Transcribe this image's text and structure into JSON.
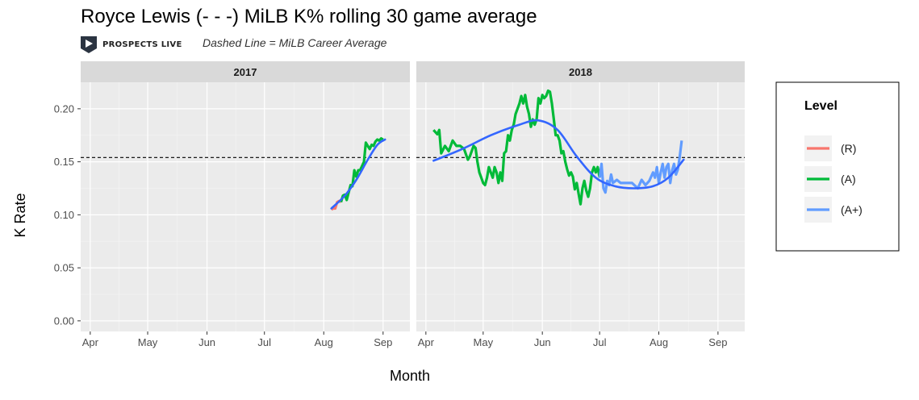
{
  "title": "Royce Lewis (- - -) MiLB K% rolling 30 game average",
  "brand": "PROSPECTS LIVE",
  "subtitle": "Dashed Line = MiLB Career Average",
  "chart_data": {
    "type": "line",
    "xlabel": "Month",
    "ylabel": "K Rate",
    "ylim": [
      -0.01,
      0.225
    ],
    "yticks": [
      0.0,
      0.05,
      0.1,
      0.15,
      0.2
    ],
    "ytick_labels": [
      "0.00",
      "0.05",
      "0.10",
      "0.15",
      "0.20"
    ],
    "xlim_day_of_year": [
      86,
      258
    ],
    "xticks": [
      {
        "label": "Apr",
        "day": 91
      },
      {
        "label": "May",
        "day": 121
      },
      {
        "label": "Jun",
        "day": 152
      },
      {
        "label": "Jul",
        "day": 182
      },
      {
        "label": "Aug",
        "day": 213
      },
      {
        "label": "Sep",
        "day": 244
      }
    ],
    "grid": true,
    "career_average": 0.154,
    "legend": {
      "title": "Level",
      "position": "right",
      "entries": [
        {
          "label": "(R)",
          "color": "#F8766D"
        },
        {
          "label": "(A)",
          "color": "#00BA38"
        },
        {
          "label": "(A+)",
          "color": "#619CFF"
        }
      ]
    },
    "smooth_color": "#3366FF",
    "panels": [
      {
        "label": "2017",
        "series": [
          {
            "level": "(R)",
            "color": "#F8766D",
            "points": [
              [
                217,
                0.105
              ],
              [
                218,
                0.106
              ],
              [
                219,
                0.106
              ],
              [
                220,
                0.112
              ],
              [
                221,
                0.113
              ],
              [
                222,
                0.112
              ]
            ]
          },
          {
            "level": "(A)",
            "color": "#00BA38",
            "points": [
              [
                222,
                0.112
              ],
              [
                223,
                0.118
              ],
              [
                224,
                0.119
              ],
              [
                225,
                0.114
              ],
              [
                226,
                0.121
              ],
              [
                227,
                0.128
              ],
              [
                228,
                0.127
              ],
              [
                229,
                0.142
              ],
              [
                230,
                0.136
              ],
              [
                231,
                0.142
              ],
              [
                232,
                0.142
              ],
              [
                233,
                0.146
              ],
              [
                234,
                0.15
              ],
              [
                235,
                0.168
              ],
              [
                236,
                0.165
              ],
              [
                237,
                0.162
              ],
              [
                238,
                0.166
              ],
              [
                239,
                0.165
              ],
              [
                240,
                0.169
              ],
              [
                241,
                0.171
              ],
              [
                242,
                0.17
              ],
              [
                243,
                0.172
              ],
              [
                244,
                0.171
              ]
            ]
          }
        ],
        "smooth": [
          [
            217,
            0.106
          ],
          [
            224,
            0.118
          ],
          [
            230,
            0.133
          ],
          [
            236,
            0.152
          ],
          [
            241,
            0.166
          ],
          [
            245,
            0.171
          ]
        ]
      },
      {
        "label": "2018",
        "series": [
          {
            "level": "(A)",
            "color": "#00BA38",
            "points": [
              [
                95,
                0.18
              ],
              [
                97,
                0.176
              ],
              [
                98,
                0.18
              ],
              [
                99,
                0.158
              ],
              [
                101,
                0.165
              ],
              [
                103,
                0.16
              ],
              [
                105,
                0.17
              ],
              [
                107,
                0.165
              ],
              [
                109,
                0.165
              ],
              [
                111,
                0.162
              ],
              [
                112,
                0.157
              ],
              [
                113,
                0.152
              ],
              [
                114,
                0.155
              ],
              [
                115,
                0.16
              ],
              [
                116,
                0.165
              ],
              [
                117,
                0.163
              ],
              [
                118,
                0.15
              ],
              [
                119,
                0.14
              ],
              [
                120,
                0.135
              ],
              [
                121,
                0.13
              ],
              [
                122,
                0.128
              ],
              [
                123,
                0.135
              ],
              [
                124,
                0.145
              ],
              [
                125,
                0.14
              ],
              [
                126,
                0.135
              ],
              [
                127,
                0.145
              ],
              [
                128,
                0.14
              ],
              [
                129,
                0.13
              ],
              [
                130,
                0.14
              ],
              [
                131,
                0.132
              ],
              [
                132,
                0.158
              ],
              [
                133,
                0.16
              ],
              [
                134,
                0.175
              ],
              [
                135,
                0.17
              ],
              [
                136,
                0.18
              ],
              [
                137,
                0.185
              ],
              [
                138,
                0.195
              ],
              [
                139,
                0.2
              ],
              [
                140,
                0.205
              ],
              [
                141,
                0.212
              ],
              [
                142,
                0.205
              ],
              [
                143,
                0.213
              ],
              [
                144,
                0.202
              ],
              [
                145,
                0.195
              ],
              [
                146,
                0.183
              ],
              [
                147,
                0.19
              ],
              [
                148,
                0.185
              ],
              [
                149,
                0.19
              ],
              [
                150,
                0.21
              ],
              [
                151,
                0.205
              ],
              [
                152,
                0.213
              ],
              [
                153,
                0.21
              ],
              [
                154,
                0.212
              ],
              [
                155,
                0.217
              ],
              [
                156,
                0.216
              ],
              [
                157,
                0.205
              ],
              [
                158,
                0.19
              ],
              [
                159,
                0.175
              ],
              [
                160,
                0.175
              ],
              [
                161,
                0.17
              ],
              [
                162,
                0.158
              ],
              [
                163,
                0.16
              ],
              [
                164,
                0.15
              ],
              [
                165,
                0.143
              ],
              [
                166,
                0.137
              ],
              [
                167,
                0.14
              ],
              [
                168,
                0.136
              ],
              [
                169,
                0.124
              ],
              [
                170,
                0.13
              ],
              [
                171,
                0.12
              ],
              [
                172,
                0.11
              ],
              [
                173,
                0.125
              ],
              [
                174,
                0.132
              ],
              [
                175,
                0.123
              ],
              [
                176,
                0.117
              ],
              [
                177,
                0.125
              ],
              [
                178,
                0.14
              ],
              [
                179,
                0.145
              ],
              [
                180,
                0.14
              ],
              [
                181,
                0.145
              ],
              [
                182,
                0.135
              ]
            ]
          },
          {
            "level": "(A+)",
            "color": "#619CFF",
            "points": [
              [
                182,
                0.135
              ],
              [
                183,
                0.148
              ],
              [
                184,
                0.125
              ],
              [
                185,
                0.121
              ],
              [
                186,
                0.132
              ],
              [
                187,
                0.128
              ],
              [
                188,
                0.138
              ],
              [
                189,
                0.13
              ],
              [
                191,
                0.133
              ],
              [
                193,
                0.13
              ],
              [
                196,
                0.13
              ],
              [
                199,
                0.13
              ],
              [
                202,
                0.125
              ],
              [
                204,
                0.133
              ],
              [
                206,
                0.128
              ],
              [
                208,
                0.132
              ],
              [
                210,
                0.14
              ],
              [
                211,
                0.135
              ],
              [
                212,
                0.145
              ],
              [
                213,
                0.13
              ],
              [
                214,
                0.14
              ],
              [
                215,
                0.148
              ],
              [
                216,
                0.135
              ],
              [
                217,
                0.145
              ],
              [
                218,
                0.148
              ],
              [
                219,
                0.13
              ],
              [
                220,
                0.142
              ],
              [
                221,
                0.148
              ],
              [
                222,
                0.138
              ],
              [
                223,
                0.143
              ],
              [
                224,
                0.155
              ],
              [
                225,
                0.17
              ]
            ]
          }
        ],
        "smooth": [
          [
            95,
            0.151
          ],
          [
            110,
            0.162
          ],
          [
            125,
            0.175
          ],
          [
            140,
            0.185
          ],
          [
            150,
            0.189
          ],
          [
            160,
            0.18
          ],
          [
            170,
            0.155
          ],
          [
            180,
            0.135
          ],
          [
            190,
            0.127
          ],
          [
            200,
            0.125
          ],
          [
            210,
            0.127
          ],
          [
            218,
            0.135
          ],
          [
            226,
            0.152
          ]
        ]
      }
    ]
  }
}
